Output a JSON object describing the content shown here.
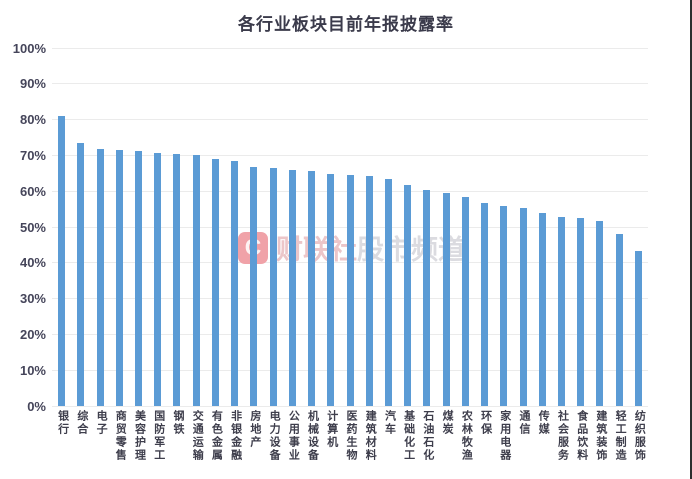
{
  "window": {
    "right_edge_border_color": "#2e2e2e",
    "background": "#ffffff"
  },
  "watermark": {
    "logo_letter": "C",
    "text_primary": "财联社",
    "text_secondary": "股市频道",
    "logo_color": "#f0a2a8"
  },
  "chart_data": {
    "type": "bar",
    "title": "各行业板块目前年报披露率",
    "categories": [
      "银行",
      "综合",
      "电子",
      "商贸零售",
      "美容护理",
      "国防军工",
      "钢铁",
      "交通运输",
      "有色金属",
      "非银金融",
      "房地产",
      "电力设备",
      "公用事业",
      "机械设备",
      "计算机",
      "医药生物",
      "建筑材料",
      "汽车",
      "基础化工",
      "石油石化",
      "煤炭",
      "农林牧渔",
      "环保",
      "家用电器",
      "通信",
      "传媒",
      "社会服务",
      "食品饮料",
      "建筑装饰",
      "轻工制造",
      "纺织服饰"
    ],
    "values": [
      81.0,
      73.4,
      71.8,
      71.6,
      71.1,
      70.6,
      70.4,
      70.1,
      69.0,
      68.4,
      66.7,
      66.4,
      65.9,
      65.7,
      64.8,
      64.5,
      64.2,
      63.4,
      61.6,
      60.4,
      59.4,
      58.4,
      56.7,
      56.0,
      55.2,
      53.9,
      52.9,
      52.6,
      51.8,
      48.1,
      43.2
    ],
    "yticks": [
      "0%",
      "10%",
      "20%",
      "30%",
      "40%",
      "50%",
      "60%",
      "70%",
      "80%",
      "90%",
      "100%"
    ],
    "ylim": [
      0,
      100
    ],
    "xlabel": "",
    "ylabel": "",
    "grid": true,
    "legend": "none",
    "bar_color": "#5b9bd5",
    "values_unit": "percent"
  }
}
